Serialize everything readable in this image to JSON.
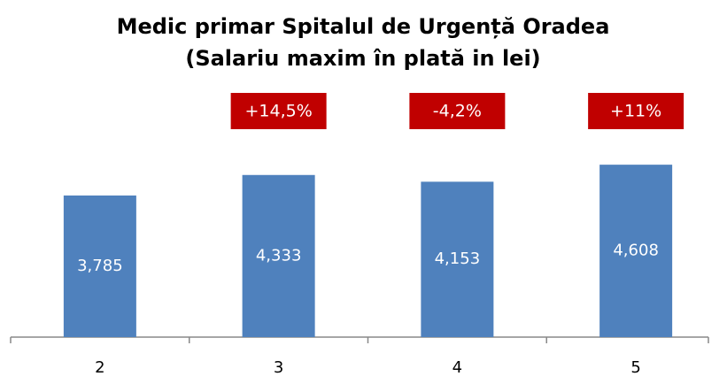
{
  "chart_data": {
    "type": "bar",
    "title": [
      "Medic primar Spitalul de Urgență Oradea",
      "(Salariu maxim în plată in lei)"
    ],
    "categories": [
      "2",
      "3",
      "4",
      "5"
    ],
    "values": [
      3785,
      4333,
      4153,
      4608
    ],
    "value_labels": [
      "3,785",
      "4,333",
      "4,153",
      "4,608"
    ],
    "annotations": [
      null,
      "+14,5%",
      "-4,2%",
      "+11%"
    ],
    "color": "#4f81bd",
    "annotation_color": "#c00000",
    "ylim": [
      0,
      7000
    ]
  }
}
